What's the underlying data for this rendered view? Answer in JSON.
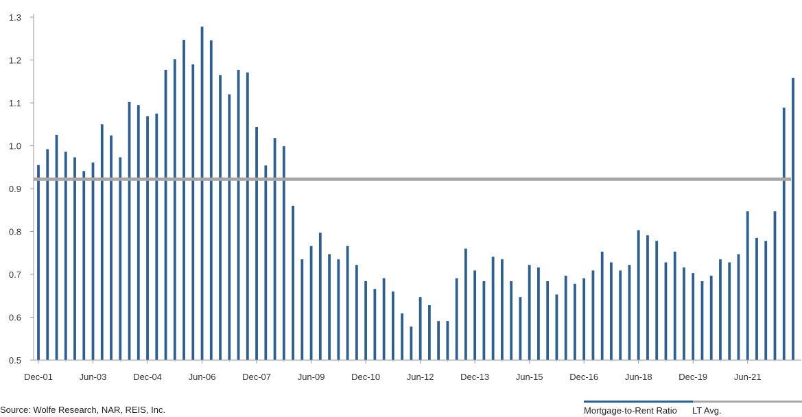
{
  "chart_data": {
    "type": "bar",
    "y_ticks": [
      "0.5",
      "0.6",
      "0.7",
      "0.8",
      "0.9",
      "1.0",
      "1.1",
      "1.2",
      "1.3"
    ],
    "ylim": [
      0.5,
      1.3
    ],
    "x_tick_labels": [
      "Dec-01",
      "Jun-03",
      "Dec-04",
      "Jun-06",
      "Dec-07",
      "Jun-09",
      "Dec-10",
      "Jun-12",
      "Dec-13",
      "Jun-15",
      "Dec-16",
      "Jun-18",
      "Dec-19",
      "Jun-21"
    ],
    "quarter_start": "Dec-01",
    "period": "quarter",
    "series": [
      {
        "name": "Mortgage-to-Rent Ratio",
        "color": "#2e5f93",
        "values": [
          0.955,
          0.992,
          1.025,
          0.986,
          0.973,
          0.941,
          0.961,
          1.05,
          1.024,
          0.973,
          1.102,
          1.095,
          1.069,
          1.075,
          1.177,
          1.202,
          1.247,
          1.19,
          1.278,
          1.246,
          1.165,
          1.12,
          1.177,
          1.171,
          1.044,
          0.954,
          1.018,
          0.999,
          0.86,
          0.735,
          0.766,
          0.797,
          0.747,
          0.735,
          0.766,
          0.722,
          0.684,
          0.666,
          0.691,
          0.66,
          0.609,
          0.578,
          0.647,
          0.628,
          0.591,
          0.591,
          0.691,
          0.76,
          0.709,
          0.684,
          0.741,
          0.735,
          0.684,
          0.647,
          0.722,
          0.716,
          0.684,
          0.653,
          0.697,
          0.678,
          0.691,
          0.709,
          0.753,
          0.728,
          0.709,
          0.722,
          0.803,
          0.791,
          0.778,
          0.728,
          0.753,
          0.716,
          0.703,
          0.684,
          0.697,
          0.735,
          0.728,
          0.747,
          0.847,
          0.785,
          0.778,
          0.847,
          1.089,
          1.158
        ]
      },
      {
        "name": "LT Avg.",
        "color": "#a6a6a6",
        "value": 0.922
      }
    ]
  },
  "source": "Source: Wolfe Research, NAR, REIS, Inc.",
  "legend": {
    "ratio_label": "Mortgage-to-Rent Ratio",
    "avg_label": "LT Avg."
  }
}
